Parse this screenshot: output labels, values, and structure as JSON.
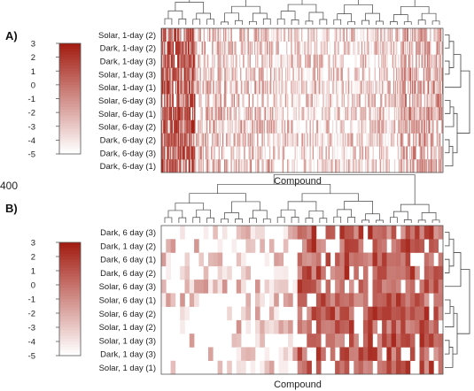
{
  "chart_data": [
    {
      "panel": "A)",
      "type": "heatmap",
      "xlabel": "Compound",
      "rows": [
        "Solar, 1-day (2)",
        "Dark, 1-day (2)",
        "Dark, 1-day (3)",
        "Solar, 1-day (3)",
        "Solar, 1-day (1)",
        "Solar, 6-day (3)",
        "Solar, 6-day (1)",
        "Solar, 6-day (2)",
        "Dark, 6-day (2)",
        "Dark, 6-day (3)",
        "Dark, 6-day (1)"
      ],
      "color_scale": {
        "min": -5,
        "max": 3,
        "ticks": [
          "3",
          "2",
          "1",
          "0",
          "-1",
          "-2",
          "-3",
          "-4",
          "-5"
        ],
        "low_color": "#ffffff",
        "high_color": "#a31d12"
      },
      "n_columns": 300
    },
    {
      "panel": "B)",
      "type": "heatmap",
      "xlabel": "Compound",
      "rows": [
        "Dark, 6 day (3)",
        "Dark, 1 day (2)",
        "Dark, 6 day (1)",
        "Dark, 6 day (2)",
        "Solar, 6 day (3)",
        "Solar, 6 day (1)",
        "Solar, 6 day (2)",
        "Solar, 1 day (2)",
        "Solar, 1 day (3)",
        "Dark, 1 day (3)",
        "Solar, 1 day (1)"
      ],
      "color_scale": {
        "min": -5,
        "max": 3,
        "ticks": [
          "3",
          "2",
          "1",
          "0",
          "-1",
          "-2",
          "-3",
          "-4",
          "-5"
        ],
        "low_color": "#ffffff",
        "high_color": "#a31d12"
      },
      "n_columns": 60
    }
  ],
  "stray_label": "400"
}
